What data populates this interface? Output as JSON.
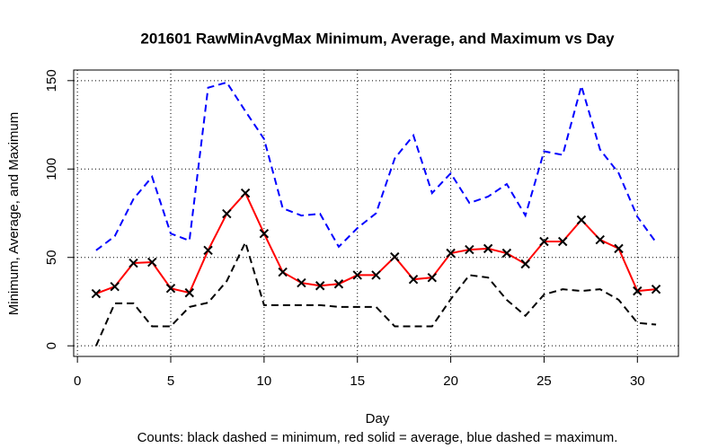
{
  "chart_data": {
    "type": "line",
    "title": "201601 RawMinAvgMax Minimum, Average, and Maximum vs Day",
    "x_label": "Day",
    "y_label": "Minimum, Average, and Maximum",
    "caption": "Counts: black dashed = minimum, red solid = average, blue dashed = maximum.",
    "x": [
      1,
      2,
      3,
      4,
      5,
      6,
      7,
      8,
      9,
      10,
      11,
      12,
      13,
      14,
      15,
      16,
      17,
      18,
      19,
      20,
      21,
      22,
      23,
      24,
      25,
      26,
      27,
      28,
      29,
      30,
      31
    ],
    "series": [
      {
        "color": "#000000",
        "dashed": true,
        "markers": false,
        "values": [
          0,
          24,
          24,
          11,
          11,
          22,
          24.4,
          36.6,
          58.5,
          23,
          23,
          23,
          23,
          22,
          22,
          22,
          11,
          11,
          11,
          26.4,
          40,
          38.6,
          26,
          17,
          29,
          32,
          31,
          32,
          26,
          13,
          12
        ]
      },
      {
        "color": "#ff0000",
        "dashed": false,
        "markers": true,
        "values": [
          29.5,
          33.5,
          46.8,
          47.3,
          32.5,
          30,
          54,
          74.7,
          86.4,
          63.5,
          41.7,
          35.6,
          34,
          35,
          40,
          40,
          50.3,
          37.6,
          38.6,
          52.4,
          54.4,
          55,
          52.4,
          46.3,
          59,
          59,
          71.2,
          60,
          55,
          31,
          32
        ]
      },
      {
        "color": "#0000ff",
        "dashed": true,
        "markers": false,
        "values": [
          54,
          62,
          83,
          95.6,
          63.5,
          59.5,
          146,
          149,
          132.7,
          117,
          77.8,
          73.7,
          74.7,
          56,
          66.6,
          75,
          106,
          119,
          86.4,
          97.6,
          80.8,
          84.4,
          91.5,
          73.7,
          110,
          108,
          147,
          111,
          97.6,
          73,
          58.5
        ]
      }
    ],
    "xlim": [
      -0.2,
      32.2
    ],
    "xticks": [
      0,
      5,
      10,
      15,
      20,
      25,
      30
    ],
    "ylim": [
      -6,
      156
    ],
    "yticks": [
      0,
      50,
      100,
      150
    ],
    "grid": true
  }
}
